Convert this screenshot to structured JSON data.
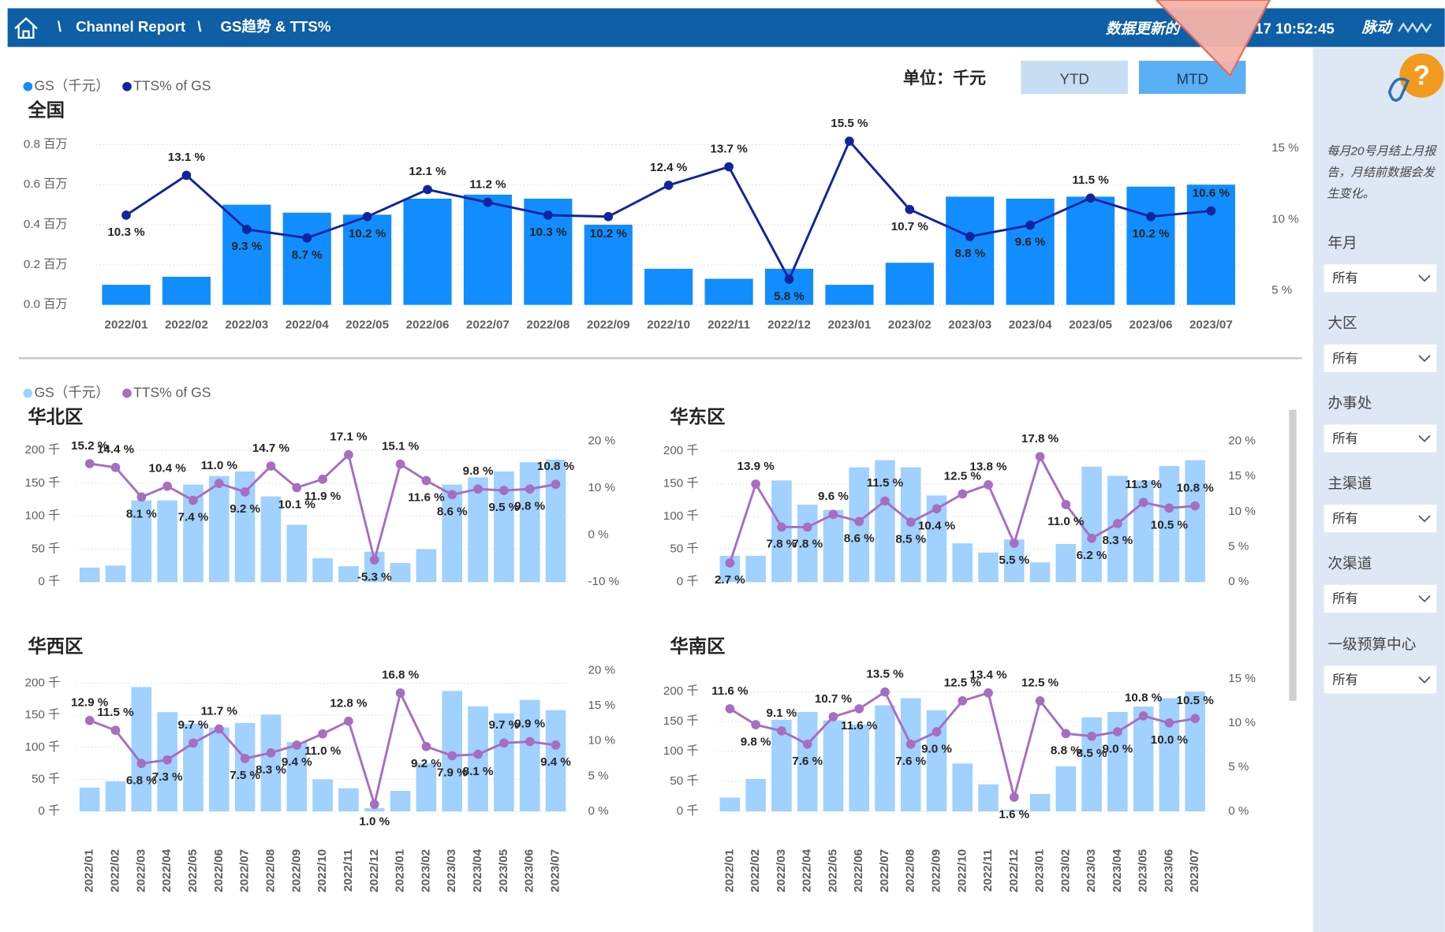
{
  "header": {
    "separator": "\\",
    "items": [
      "Channel Report",
      "GS趋势 & TTS%"
    ],
    "update_label": "数据更新的",
    "update_time": "17 10:52:45",
    "brand": "脉动"
  },
  "controls": {
    "unit": "单位：千元",
    "buttons": [
      "YTD",
      "MTD"
    ],
    "help_icon": "?"
  },
  "sidebar": {
    "note_lines": [
      "每月20号月结上月报",
      "告，月结前数据会发",
      "生变化。"
    ],
    "filters": [
      {
        "label": "年月",
        "value": "所有"
      },
      {
        "label": "大区",
        "value": "所有"
      },
      {
        "label": "办事处",
        "value": "所有"
      },
      {
        "label": "主渠道",
        "value": "所有"
      },
      {
        "label": "次渠道",
        "value": "所有"
      },
      {
        "label": "一级预算中心",
        "value": "所有"
      }
    ]
  },
  "chart_data": [
    {
      "type": "combo",
      "title": "全国",
      "categories": [
        "2022/01",
        "2022/02",
        "2022/03",
        "2022/04",
        "2022/05",
        "2022/06",
        "2022/07",
        "2022/08",
        "2022/09",
        "2022/10",
        "2022/11",
        "2022/12",
        "2023/01",
        "2023/02",
        "2023/03",
        "2023/04",
        "2023/05",
        "2023/06",
        "2023/07"
      ],
      "series": [
        {
          "name": "GS（千元）",
          "type": "bar",
          "color": "#118DFF",
          "values": [
            0.1,
            0.14,
            0.5,
            0.46,
            0.45,
            0.53,
            0.55,
            0.53,
            0.4,
            0.18,
            0.13,
            0.18,
            0.1,
            0.21,
            0.54,
            0.53,
            0.54,
            0.59,
            0.6
          ]
        },
        {
          "name": "TTS% of GS",
          "type": "line",
          "axis": "y2",
          "color": "#12239E",
          "values": [
            10.3,
            13.1,
            9.3,
            8.7,
            10.2,
            12.1,
            11.2,
            10.3,
            10.2,
            12.4,
            13.7,
            5.8,
            15.5,
            10.7,
            8.8,
            9.6,
            11.5,
            10.2,
            10.6
          ],
          "value_labels": [
            "10.3 %",
            "13.1 %",
            "9.3 %",
            "8.7 %",
            "10.2 %",
            "12.1 %",
            "11.2 %",
            "10.3 %",
            "10.2 %",
            "12.4 %",
            "13.7 %",
            "5.8 %",
            "15.5 %",
            "10.7 %",
            "8.8 %",
            "9.6 %",
            "11.5 %",
            "10.2 %",
            "10.6 %"
          ]
        }
      ],
      "ylim": [
        0,
        0.8
      ],
      "yticks": [
        {
          "value": 0,
          "label": "0.0 百万"
        },
        {
          "value": 0.2,
          "label": "0.2 百万"
        },
        {
          "value": 0.4,
          "label": "0.4 百万"
        },
        {
          "value": 0.6,
          "label": "0.6 百万"
        },
        {
          "value": 0.8,
          "label": "0.8 百万"
        }
      ],
      "y2lim": [
        4,
        15.26
      ],
      "y2ticks": [
        {
          "value": 5,
          "label": "5 %"
        },
        {
          "value": 10,
          "label": "10 %"
        },
        {
          "value": 15,
          "label": "15 %"
        }
      ],
      "grid": true
    },
    {
      "type": "combo",
      "title": "华北区",
      "series": [
        {
          "name": "GS（千元）",
          "type": "bar",
          "color": "#A0D1FF",
          "values": [
            22,
            25,
            124,
            124,
            148,
            161,
            168,
            130,
            87,
            36,
            24,
            46,
            29,
            50,
            148,
            159,
            168,
            182,
            186
          ]
        },
        {
          "name": "TTS% of GS",
          "type": "line",
          "axis": "y2",
          "color": "#A66EC0",
          "values": [
            15.2,
            14.4,
            8.1,
            10.4,
            7.4,
            11.0,
            9.2,
            14.7,
            10.1,
            11.9,
            17.1,
            -5.3,
            15.1,
            11.6,
            8.6,
            9.8,
            9.5,
            9.8,
            10.8
          ],
          "value_labels": [
            "15.2 %",
            "14.4 %",
            "8.1 %",
            "10.4 %",
            "7.4 %",
            "11.0 %",
            "9.2 %",
            "14.7 %",
            "10.1 %",
            "11.9 %",
            "17.1 %",
            "-5.3 %",
            "15.1 %",
            "11.6 %",
            "8.6 %",
            "9.8 %",
            "9.5 %",
            "9.8 %",
            "10.8 %"
          ]
        }
      ],
      "ylim": [
        0,
        214
      ],
      "yticks": [
        {
          "value": 0,
          "label": "0 千"
        },
        {
          "value": 50,
          "label": "50 千"
        },
        {
          "value": 100,
          "label": "100 千"
        },
        {
          "value": 150,
          "label": "150 千"
        },
        {
          "value": 200,
          "label": "200 千"
        }
      ],
      "y2lim": [
        -10,
        20
      ],
      "y2ticks": [
        {
          "value": -10,
          "label": "-10 %"
        },
        {
          "value": 0,
          "label": "0 %"
        },
        {
          "value": 10,
          "label": "10 %"
        },
        {
          "value": 20,
          "label": "20 %"
        }
      ],
      "grid": true
    },
    {
      "type": "combo",
      "title": "华东区",
      "series": [
        {
          "type": "bar",
          "color": "#A0D1FF",
          "values": [
            40,
            40,
            155,
            118,
            110,
            175,
            186,
            175,
            132,
            59,
            45,
            65,
            30,
            58,
            176,
            162,
            155,
            177,
            186
          ]
        },
        {
          "type": "line",
          "axis": "y2",
          "color": "#A66EC0",
          "values": [
            2.7,
            13.9,
            7.8,
            7.8,
            9.6,
            8.6,
            11.5,
            8.5,
            10.4,
            12.5,
            13.8,
            5.5,
            17.8,
            11.0,
            6.2,
            8.3,
            11.3,
            10.5,
            10.8
          ],
          "value_labels": [
            "2.7 %",
            "13.9 %",
            "7.8 %",
            "7.8 %",
            "9.6 %",
            "8.6 %",
            "11.5 %",
            "8.5 %",
            "10.4 %",
            "12.5 %",
            "13.8 %",
            "5.5 %",
            "17.8 %",
            "11.0 %",
            "6.2 %",
            "8.3 %",
            "11.3 %",
            "10.5 %",
            "10.8 %"
          ]
        }
      ],
      "ylim": [
        0,
        215
      ],
      "yticks": [
        {
          "value": 0,
          "label": "0 千"
        },
        {
          "value": 50,
          "label": "50 千"
        },
        {
          "value": 100,
          "label": "100 千"
        },
        {
          "value": 150,
          "label": "150 千"
        },
        {
          "value": 200,
          "label": "200 千"
        }
      ],
      "y2lim": [
        0,
        20
      ],
      "y2ticks": [
        {
          "value": 0,
          "label": "0 %"
        },
        {
          "value": 5,
          "label": "5 %"
        },
        {
          "value": 10,
          "label": "10 %"
        },
        {
          "value": 15,
          "label": "15 %"
        },
        {
          "value": 20,
          "label": "20 %"
        }
      ],
      "grid": true
    },
    {
      "type": "combo",
      "title": "华西区",
      "categories": [
        "2022/01",
        "2022/02",
        "2022/03",
        "2022/04",
        "2022/05",
        "2022/06",
        "2022/07",
        "2022/08",
        "2022/09",
        "2022/10",
        "2022/11",
        "2022/12",
        "2023/01",
        "2023/02",
        "2023/03",
        "2023/04",
        "2023/05",
        "2023/06",
        "2023/07"
      ],
      "series": [
        {
          "type": "bar",
          "color": "#A0D1FF",
          "values": [
            37,
            47,
            194,
            155,
            137,
            131,
            138,
            151,
            108,
            50,
            36,
            5,
            32,
            75,
            188,
            164,
            153,
            174,
            158
          ]
        },
        {
          "type": "line",
          "axis": "y2",
          "color": "#A66EC0",
          "values": [
            12.9,
            11.5,
            6.8,
            7.3,
            9.7,
            11.7,
            7.5,
            8.3,
            9.4,
            11.0,
            12.8,
            1.0,
            16.8,
            9.2,
            7.9,
            8.1,
            9.7,
            9.9,
            9.4
          ],
          "value_labels": [
            "12.9 %",
            "11.5 %",
            "6.8 %",
            "7.3 %",
            "9.7 %",
            "11.7 %",
            "7.5 %",
            "8.3 %",
            "9.4 %",
            "11.0 %",
            "12.8 %",
            "1.0 %",
            "16.8 %",
            "9.2 %",
            "7.9 %",
            "8.1 %",
            "9.7 %",
            "9.9 %",
            "9.4 %"
          ]
        }
      ],
      "ylim": [
        0,
        220
      ],
      "yticks": [
        {
          "value": 0,
          "label": "0 千"
        },
        {
          "value": 50,
          "label": "50 千"
        },
        {
          "value": 100,
          "label": "100 千"
        },
        {
          "value": 150,
          "label": "150 千"
        },
        {
          "value": 200,
          "label": "200 千"
        }
      ],
      "y2lim": [
        0,
        20
      ],
      "y2ticks": [
        {
          "value": 0,
          "label": "0 %"
        },
        {
          "value": 5,
          "label": "5 %"
        },
        {
          "value": 10,
          "label": "10 %"
        },
        {
          "value": 15,
          "label": "15 %"
        },
        {
          "value": 20,
          "label": "20 %"
        }
      ],
      "grid": true
    },
    {
      "type": "combo",
      "title": "华南区",
      "categories": [
        "2022/01",
        "2022/02",
        "2022/03",
        "2022/04",
        "2022/05",
        "2022/06",
        "2022/07",
        "2022/08",
        "2022/09",
        "2022/10",
        "2022/11",
        "2022/12",
        "2023/01",
        "2023/02",
        "2023/03",
        "2023/04",
        "2023/05",
        "2023/06",
        "2023/07"
      ],
      "series": [
        {
          "type": "bar",
          "color": "#A0D1FF",
          "values": [
            23,
            54,
            153,
            166,
            152,
            145,
            177,
            189,
            169,
            80,
            45,
            3,
            29,
            75,
            157,
            166,
            175,
            189,
            200
          ]
        },
        {
          "type": "line",
          "axis": "y2",
          "color": "#A66EC0",
          "values": [
            11.6,
            9.8,
            9.1,
            7.6,
            10.7,
            11.6,
            13.5,
            7.6,
            9.0,
            12.5,
            13.4,
            1.6,
            12.5,
            8.8,
            8.5,
            9.0,
            10.8,
            10.0,
            10.5
          ],
          "value_labels": [
            "11.6 %",
            "9.8 %",
            "9.1 %",
            "7.6 %",
            "10.7 %",
            "11.6 %",
            "13.5 %",
            "7.6 %",
            "9.0 %",
            "12.5 %",
            "13.4 %",
            "1.6 %",
            "12.5 %",
            "8.8 %",
            "8.5 %",
            "9.0 %",
            "10.8 %",
            "10.0 %",
            "10.5 %"
          ]
        }
      ],
      "ylim": [
        0,
        221.5
      ],
      "yticks": [
        {
          "value": 0,
          "label": "0 千"
        },
        {
          "value": 50,
          "label": "50 千"
        },
        {
          "value": 100,
          "label": "100 千"
        },
        {
          "value": 150,
          "label": "150 千"
        },
        {
          "value": 200,
          "label": "200 千"
        }
      ],
      "y2lim": [
        0,
        15
      ],
      "y2ticks": [
        {
          "value": 0,
          "label": "0 %"
        },
        {
          "value": 5,
          "label": "5 %"
        },
        {
          "value": 10,
          "label": "10 %"
        },
        {
          "value": 15,
          "label": "15 %"
        }
      ],
      "grid": true
    }
  ]
}
